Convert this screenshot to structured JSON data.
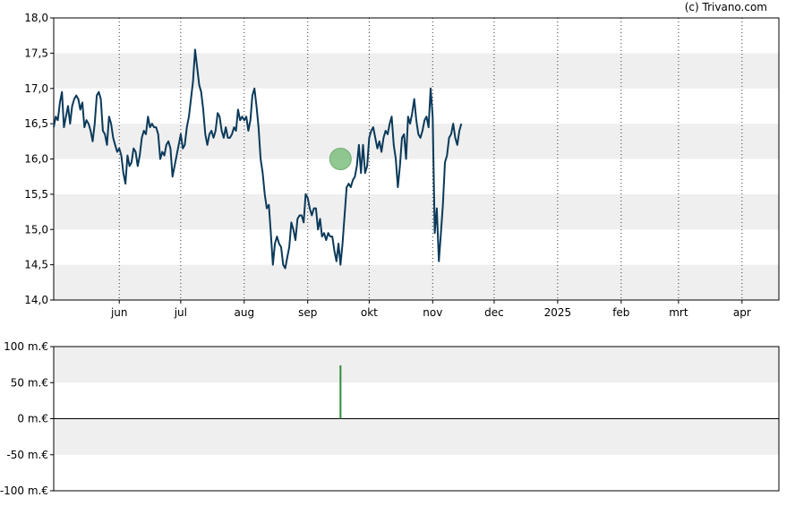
{
  "credit": "(c) Trivano.com",
  "chart_data": [
    {
      "type": "line",
      "x_ticks": [
        {
          "label": "jun",
          "day": 45
        },
        {
          "label": "jul",
          "day": 75
        },
        {
          "label": "aug",
          "day": 106
        },
        {
          "label": "sep",
          "day": 137
        },
        {
          "label": "okt",
          "day": 167
        },
        {
          "label": "nov",
          "day": 198
        },
        {
          "label": "dec",
          "day": 228
        },
        {
          "label": "2025",
          "day": 259
        },
        {
          "label": "feb",
          "day": 290
        },
        {
          "label": "mrt",
          "day": 318
        },
        {
          "label": "apr",
          "day": 349
        }
      ],
      "xlim": [
        13,
        367
      ],
      "y_ticks": [
        {
          "label": "14,0",
          "value": 14.0
        },
        {
          "label": "14,5",
          "value": 14.5
        },
        {
          "label": "15,0",
          "value": 15.0
        },
        {
          "label": "15,5",
          "value": 15.5
        },
        {
          "label": "16,0",
          "value": 16.0
        },
        {
          "label": "16,5",
          "value": 16.5
        },
        {
          "label": "17,0",
          "value": 17.0
        },
        {
          "label": "17,5",
          "value": 17.5
        },
        {
          "label": "18,0",
          "value": 18.0
        }
      ],
      "ylim": [
        14.0,
        18.0
      ],
      "grid": true,
      "series": [
        {
          "color": "#0b3a5a",
          "points": [
            [
              13,
              16.45
            ],
            [
              14,
              16.6
            ],
            [
              15,
              16.55
            ],
            [
              16,
              16.8
            ],
            [
              17,
              16.95
            ],
            [
              18,
              16.45
            ],
            [
              19,
              16.6
            ],
            [
              20,
              16.75
            ],
            [
              21,
              16.5
            ],
            [
              22,
              16.75
            ],
            [
              23,
              16.85
            ],
            [
              24,
              16.9
            ],
            [
              25,
              16.85
            ],
            [
              26,
              16.7
            ],
            [
              27,
              16.8
            ],
            [
              28,
              16.45
            ],
            [
              29,
              16.55
            ],
            [
              30,
              16.5
            ],
            [
              31,
              16.4
            ],
            [
              32,
              16.25
            ],
            [
              33,
              16.5
            ],
            [
              34,
              16.9
            ],
            [
              35,
              16.95
            ],
            [
              36,
              16.85
            ],
            [
              37,
              16.4
            ],
            [
              38,
              16.35
            ],
            [
              39,
              16.2
            ],
            [
              40,
              16.6
            ],
            [
              41,
              16.5
            ],
            [
              42,
              16.3
            ],
            [
              43,
              16.2
            ],
            [
              44,
              16.1
            ],
            [
              45,
              16.15
            ],
            [
              46,
              16.05
            ],
            [
              47,
              15.8
            ],
            [
              48,
              15.65
            ],
            [
              49,
              16.05
            ],
            [
              50,
              15.9
            ],
            [
              51,
              15.95
            ],
            [
              52,
              16.15
            ],
            [
              53,
              16.1
            ],
            [
              54,
              15.9
            ],
            [
              55,
              16.05
            ],
            [
              56,
              16.3
            ],
            [
              57,
              16.4
            ],
            [
              58,
              16.35
            ],
            [
              59,
              16.6
            ],
            [
              60,
              16.45
            ],
            [
              61,
              16.5
            ],
            [
              62,
              16.45
            ],
            [
              63,
              16.45
            ],
            [
              64,
              16.35
            ],
            [
              65,
              16.0
            ],
            [
              66,
              16.1
            ],
            [
              67,
              16.05
            ],
            [
              68,
              16.2
            ],
            [
              69,
              16.25
            ],
            [
              70,
              16.15
            ],
            [
              71,
              15.75
            ],
            [
              72,
              15.9
            ],
            [
              73,
              16.05
            ],
            [
              74,
              16.2
            ],
            [
              75,
              16.35
            ],
            [
              76,
              16.15
            ],
            [
              77,
              16.2
            ],
            [
              78,
              16.45
            ],
            [
              79,
              16.6
            ],
            [
              80,
              16.85
            ],
            [
              81,
              17.1
            ],
            [
              82,
              17.55
            ],
            [
              83,
              17.3
            ],
            [
              84,
              17.05
            ],
            [
              85,
              16.95
            ],
            [
              86,
              16.7
            ],
            [
              87,
              16.35
            ],
            [
              88,
              16.2
            ],
            [
              89,
              16.35
            ],
            [
              90,
              16.4
            ],
            [
              91,
              16.3
            ],
            [
              92,
              16.4
            ],
            [
              93,
              16.65
            ],
            [
              94,
              16.6
            ],
            [
              95,
              16.4
            ],
            [
              96,
              16.3
            ],
            [
              97,
              16.45
            ],
            [
              98,
              16.3
            ],
            [
              99,
              16.3
            ],
            [
              100,
              16.35
            ],
            [
              101,
              16.45
            ],
            [
              102,
              16.4
            ],
            [
              103,
              16.7
            ],
            [
              104,
              16.55
            ],
            [
              105,
              16.6
            ],
            [
              106,
              16.55
            ],
            [
              107,
              16.6
            ],
            [
              108,
              16.4
            ],
            [
              109,
              16.55
            ],
            [
              110,
              16.9
            ],
            [
              111,
              17.0
            ],
            [
              112,
              16.75
            ],
            [
              113,
              16.45
            ],
            [
              114,
              16.0
            ],
            [
              115,
              15.8
            ],
            [
              116,
              15.5
            ],
            [
              117,
              15.3
            ],
            [
              118,
              15.35
            ],
            [
              119,
              14.95
            ],
            [
              120,
              14.5
            ],
            [
              121,
              14.8
            ],
            [
              122,
              14.9
            ],
            [
              123,
              14.8
            ],
            [
              124,
              14.75
            ],
            [
              125,
              14.5
            ],
            [
              126,
              14.45
            ],
            [
              127,
              14.6
            ],
            [
              128,
              14.75
            ],
            [
              129,
              15.1
            ],
            [
              130,
              15.0
            ],
            [
              131,
              14.85
            ],
            [
              132,
              15.15
            ],
            [
              133,
              15.2
            ],
            [
              134,
              15.2
            ],
            [
              135,
              15.1
            ],
            [
              136,
              15.5
            ],
            [
              137,
              15.45
            ],
            [
              138,
              15.3
            ],
            [
              139,
              15.2
            ],
            [
              140,
              15.3
            ],
            [
              141,
              15.3
            ],
            [
              142,
              15.0
            ],
            [
              143,
              15.15
            ],
            [
              144,
              14.9
            ],
            [
              145,
              14.95
            ],
            [
              146,
              14.85
            ],
            [
              147,
              14.95
            ],
            [
              148,
              14.9
            ],
            [
              149,
              14.9
            ],
            [
              150,
              14.7
            ],
            [
              151,
              14.55
            ],
            [
              152,
              14.8
            ],
            [
              153,
              14.5
            ],
            [
              154,
              14.8
            ],
            [
              155,
              15.2
            ],
            [
              156,
              15.6
            ],
            [
              157,
              15.65
            ],
            [
              158,
              15.6
            ],
            [
              159,
              15.7
            ],
            [
              160,
              15.75
            ],
            [
              161,
              15.9
            ],
            [
              162,
              16.2
            ],
            [
              163,
              15.8
            ],
            [
              164,
              16.2
            ],
            [
              165,
              15.8
            ],
            [
              166,
              15.9
            ],
            [
              167,
              16.3
            ],
            [
              168,
              16.4
            ],
            [
              169,
              16.45
            ],
            [
              170,
              16.3
            ],
            [
              171,
              16.15
            ],
            [
              172,
              16.25
            ],
            [
              173,
              16.1
            ],
            [
              174,
              16.3
            ],
            [
              175,
              16.4
            ],
            [
              176,
              16.35
            ],
            [
              177,
              16.5
            ],
            [
              178,
              16.6
            ],
            [
              179,
              16.2
            ],
            [
              180,
              16.0
            ],
            [
              181,
              15.6
            ],
            [
              182,
              15.9
            ],
            [
              183,
              16.3
            ],
            [
              184,
              16.35
            ],
            [
              185,
              16.0
            ],
            [
              186,
              16.6
            ],
            [
              187,
              16.5
            ],
            [
              188,
              16.65
            ],
            [
              189,
              16.85
            ],
            [
              190,
              16.55
            ],
            [
              191,
              16.35
            ],
            [
              192,
              16.3
            ],
            [
              193,
              16.4
            ],
            [
              194,
              16.55
            ],
            [
              195,
              16.6
            ],
            [
              196,
              16.45
            ],
            [
              197,
              17.0
            ],
            [
              198,
              16.6
            ],
            [
              199,
              14.95
            ],
            [
              200,
              15.3
            ],
            [
              201,
              14.55
            ],
            [
              202,
              14.95
            ],
            [
              203,
              15.35
            ],
            [
              204,
              15.95
            ],
            [
              205,
              16.05
            ],
            [
              206,
              16.3
            ],
            [
              207,
              16.35
            ],
            [
              208,
              16.5
            ],
            [
              209,
              16.3
            ],
            [
              210,
              16.2
            ],
            [
              211,
              16.4
            ],
            [
              212,
              16.5
            ]
          ]
        }
      ]
    },
    {
      "type": "bar",
      "y_ticks": [
        {
          "label": "100 m.€",
          "value": 100
        },
        {
          "label": "50 m.€",
          "value": 50
        },
        {
          "label": "0 m.€",
          "value": 0
        },
        {
          "label": "-50 m.€",
          "value": -50
        },
        {
          "label": "-100 m.€",
          "value": -100
        }
      ],
      "ylim": [
        -100,
        100
      ],
      "grid": true,
      "bars": [
        {
          "day": 153,
          "value": 74,
          "color": "#2e8b3a"
        }
      ]
    }
  ],
  "markers": [
    {
      "day": 153,
      "value": 16.0,
      "color": "#7fbf7f"
    }
  ]
}
